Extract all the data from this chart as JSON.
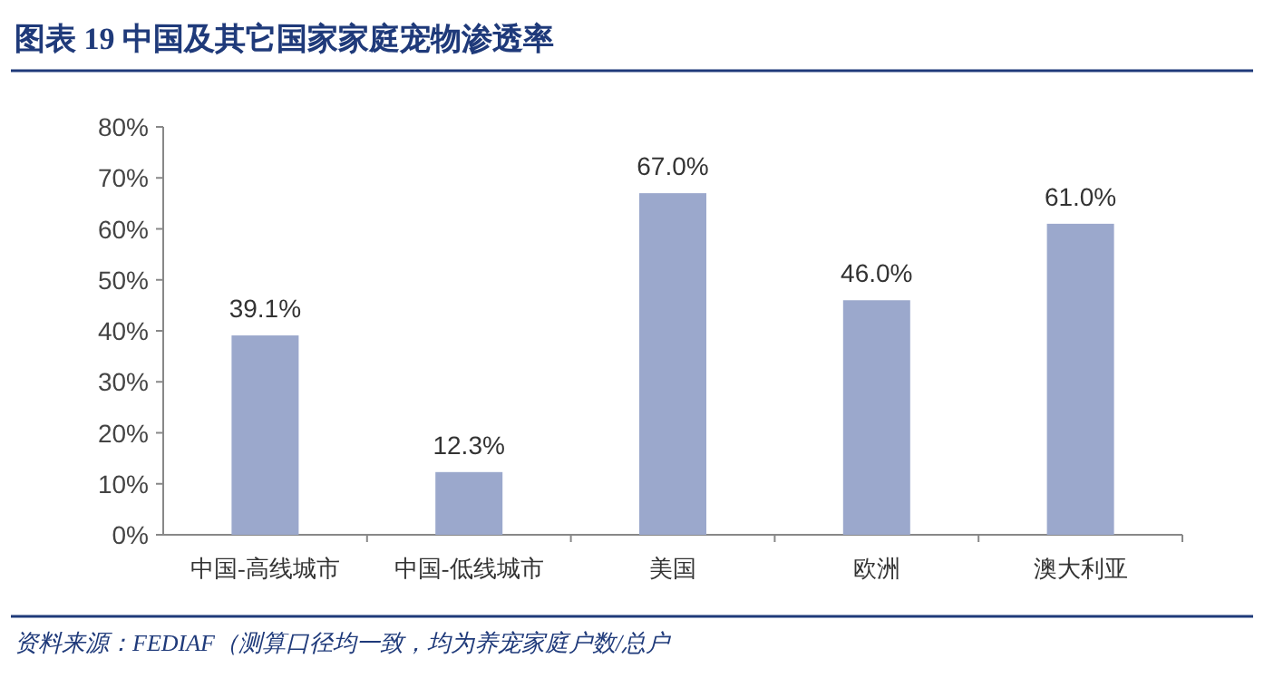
{
  "chart_data": {
    "type": "bar",
    "title": "图表 19 中国及其它国家家庭宠物渗透率",
    "categories": [
      "中国-高线城市",
      "中国-低线城市",
      "美国",
      "欧洲",
      "澳大利亚"
    ],
    "values": [
      39.1,
      12.3,
      67.0,
      46.0,
      61.0
    ],
    "value_labels": [
      "39.1%",
      "12.3%",
      "67.0%",
      "46.0%",
      "61.0%"
    ],
    "color": "#9ba8cc",
    "ylim": [
      0,
      80
    ],
    "yticks": [
      {
        "value": 0,
        "label": "0%"
      },
      {
        "value": 10,
        "label": "10%"
      },
      {
        "value": 20,
        "label": "20%"
      },
      {
        "value": 30,
        "label": "30%"
      },
      {
        "value": 40,
        "label": "40%"
      },
      {
        "value": 50,
        "label": "50%"
      },
      {
        "value": 60,
        "label": "60%"
      },
      {
        "value": 70,
        "label": "70%"
      },
      {
        "value": 80,
        "label": "80%"
      }
    ],
    "grid": false,
    "annotations": [
      "资料来源：FEDIAF（测算口径均一致，均为养宠家庭户数/总户"
    ]
  }
}
